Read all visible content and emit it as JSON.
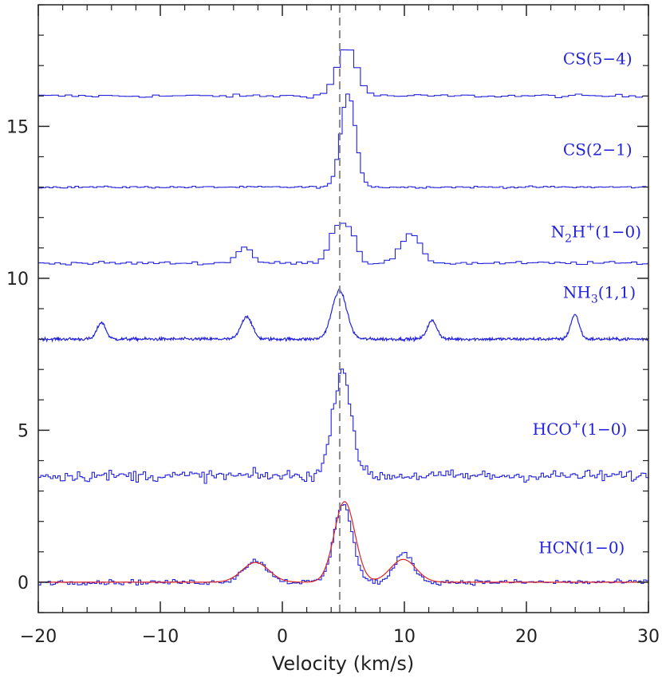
{
  "chart_data": {
    "type": "line",
    "title": "",
    "xlabel": "Velocity (km/s)",
    "ylabel": "",
    "xlim": [
      -20,
      30
    ],
    "ylim": [
      -1,
      19
    ],
    "x_ticks": [
      -20,
      -10,
      0,
      10,
      20,
      30
    ],
    "x_tick_labels": [
      "−20",
      "−10",
      "0",
      "10",
      "20",
      "30"
    ],
    "y_ticks": [
      0,
      5,
      10,
      15
    ],
    "y_tick_labels": [
      "0",
      "5",
      "10",
      "15"
    ],
    "grid": false,
    "reference_line": {
      "x": 4.7,
      "style": "dashed",
      "color": "#888888"
    },
    "colors": {
      "spectra": "#2222dd",
      "fit": "#dd2222",
      "axes": "#222222"
    },
    "series": [
      {
        "name": "CS(5−4)",
        "label_parts": {
          "pre": "CS(5−4)",
          "sub": "",
          "mid": "",
          "sup": "",
          "post": ""
        },
        "label_pos": [
          23,
          17.05
        ],
        "style": "step",
        "baseline": 16.0,
        "noise": 0.05,
        "channel_width": 0.55,
        "components": [
          [
            5.3,
            1.6,
            0.8
          ]
        ]
      },
      {
        "name": "CS(2−1)",
        "label_parts": {
          "pre": "CS(2−1)",
          "sub": "",
          "mid": "",
          "sup": "",
          "post": ""
        },
        "label_pos": [
          23,
          14.05
        ],
        "style": "step",
        "baseline": 13.0,
        "noise": 0.03,
        "channel_width": 0.3,
        "components": [
          [
            5.4,
            3.1,
            0.6
          ]
        ]
      },
      {
        "name": "N2H+(1−0)",
        "label_parts": {
          "pre": "N",
          "sub": "2",
          "mid": "H",
          "sup": "+",
          "post": "(1−0)"
        },
        "label_pos": [
          22,
          11.35
        ],
        "style": "step",
        "baseline": 10.5,
        "noise": 0.05,
        "channel_width": 0.45,
        "components": [
          [
            -3.1,
            0.55,
            0.6
          ],
          [
            4.6,
            1.25,
            0.7
          ],
          [
            5.7,
            0.7,
            0.5
          ],
          [
            10.5,
            0.95,
            0.8
          ]
        ]
      },
      {
        "name": "NH3(1,1)",
        "label_parts": {
          "pre": "NH",
          "sub": "3",
          "mid": "(1,1)",
          "sup": "",
          "post": ""
        },
        "label_pos": [
          23,
          9.35
        ],
        "style": "line",
        "baseline": 8.0,
        "noise": 0.05,
        "channel_width": 0.05,
        "components": [
          [
            -14.8,
            0.55,
            0.35
          ],
          [
            -2.9,
            0.75,
            0.45
          ],
          [
            4.7,
            1.6,
            0.6
          ],
          [
            12.3,
            0.6,
            0.4
          ],
          [
            24.0,
            0.8,
            0.35
          ]
        ]
      },
      {
        "name": "HCO+(1−0)",
        "label_parts": {
          "pre": "HCO",
          "sub": "",
          "mid": "",
          "sup": "+",
          "post": "(1−0)"
        },
        "label_pos": [
          20.5,
          4.85
        ],
        "style": "step",
        "baseline": 3.5,
        "noise": 0.18,
        "channel_width": 0.2,
        "components": [
          [
            4.9,
            3.5,
            0.75
          ]
        ]
      },
      {
        "name": "HCN(1−0)",
        "label_parts": {
          "pre": "HCN(1−0)",
          "sub": "",
          "mid": "",
          "sup": "",
          "post": ""
        },
        "label_pos": [
          21,
          0.95
        ],
        "style": "step",
        "baseline": 0.0,
        "noise": 0.08,
        "channel_width": 0.2,
        "components": [
          [
            -2.2,
            0.7,
            1.0
          ],
          [
            5.0,
            2.6,
            0.75
          ],
          [
            10.0,
            0.95,
            0.75
          ]
        ]
      }
    ],
    "fit": {
      "name": "HCN(1−0) fit",
      "baseline": 0.0,
      "components": [
        [
          -2.2,
          0.65,
          1.1
        ],
        [
          5.1,
          2.65,
          0.85
        ],
        [
          9.9,
          0.75,
          1.05
        ]
      ]
    }
  }
}
